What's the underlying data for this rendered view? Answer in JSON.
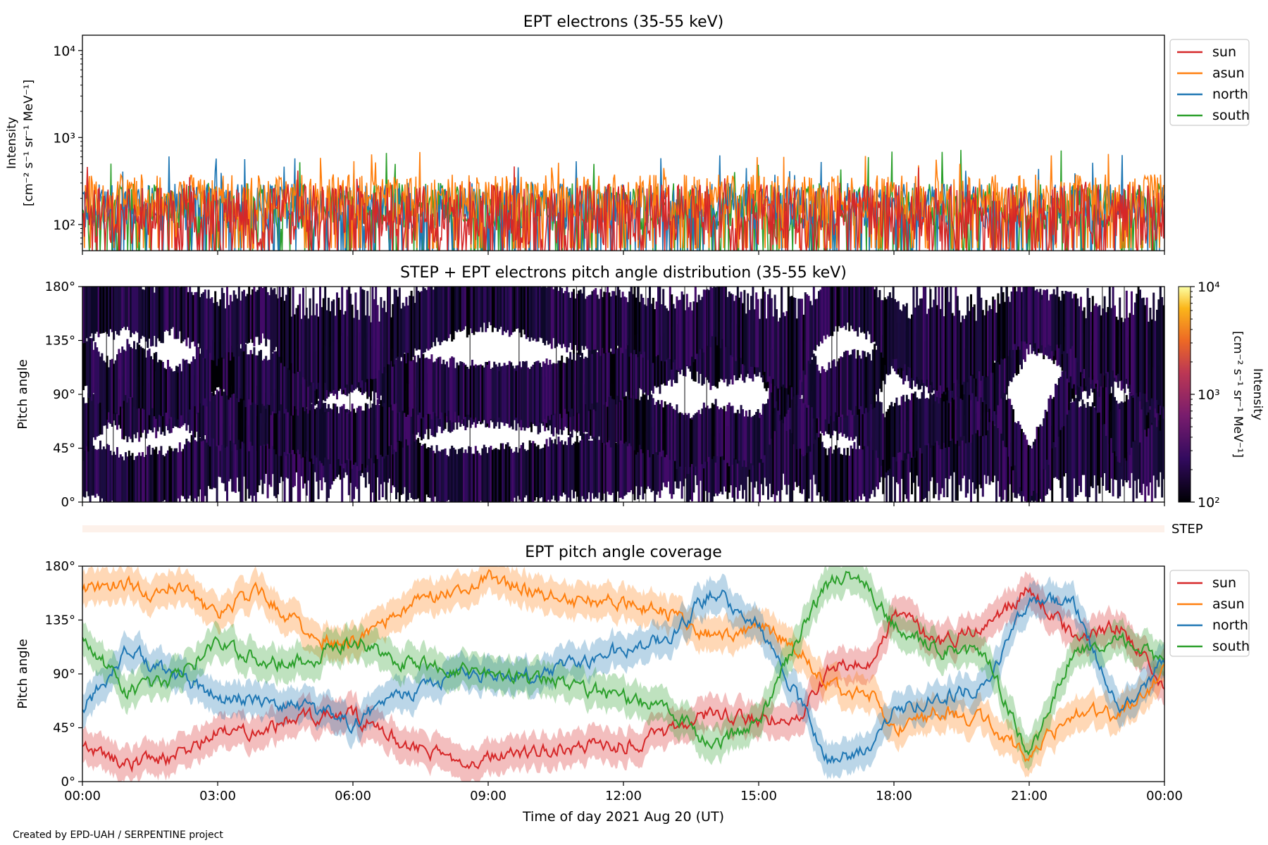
{
  "footer": {
    "credit": "Created by EPD-UAH / SERPENTINE project"
  },
  "colors": {
    "sun": "#d62728",
    "asun": "#ff7f0e",
    "north": "#1f77b4",
    "south": "#2ca02c",
    "step_band": "#fdf1ea"
  },
  "chart_data": [
    {
      "type": "line",
      "title": "EPT electrons (35-55 keV)",
      "ylabel_line1": "Intensity",
      "ylabel_line2": "[cm⁻² s⁻¹ sr⁻¹ MeV⁻¹]",
      "yscale": "log",
      "ylim": [
        50,
        15000
      ],
      "yticks": [
        {
          "value": 100,
          "label": "10²"
        },
        {
          "value": 1000,
          "label": "10³"
        },
        {
          "value": 10000,
          "label": "10⁴"
        }
      ],
      "x_range_hours": [
        0,
        24
      ],
      "legend": {
        "placement": "outside right",
        "entries": [
          "sun",
          "asun",
          "north",
          "south"
        ]
      },
      "series": [
        {
          "name": "sun",
          "color_key": "sun",
          "typical": 130,
          "low": 55,
          "high": 480
        },
        {
          "name": "asun",
          "color_key": "asun",
          "typical": 200,
          "low": 60,
          "high": 690
        },
        {
          "name": "north",
          "color_key": "north",
          "typical": 160,
          "low": 55,
          "high": 640
        },
        {
          "name": "south",
          "color_key": "south",
          "typical": 160,
          "low": 55,
          "high": 720
        }
      ]
    },
    {
      "type": "heatmap",
      "title": "STEP + EPT electrons pitch angle distribution (35-55 keV)",
      "ylabel": "Pitch angle",
      "ylim": [
        0,
        180
      ],
      "yticks": [
        "0°",
        "45°",
        "90°",
        "135°",
        "180°"
      ],
      "colorbar": {
        "label_line1": "Intensity",
        "label_line2": "[cm⁻² s⁻¹ sr⁻¹ MeV⁻¹]",
        "scale": "log",
        "range": [
          100,
          10000
        ],
        "ticks": [
          {
            "value": 100,
            "label": "10²"
          },
          {
            "value": 1000,
            "label": "10³"
          },
          {
            "value": 10000,
            "label": "10⁴"
          }
        ],
        "colormap": "inferno"
      }
    },
    {
      "type": "heatmap",
      "label": "STEP",
      "note": "empty STEP strip"
    },
    {
      "type": "line",
      "title": "EPT pitch angle coverage",
      "ylabel": "Pitch angle",
      "xlabel": "Time of day 2021 Aug 20 (UT)",
      "ylim": [
        0,
        180
      ],
      "yticks": [
        "0°",
        "45°",
        "90°",
        "135°",
        "180°"
      ],
      "xticks": [
        "00:00",
        "03:00",
        "06:00",
        "09:00",
        "12:00",
        "15:00",
        "18:00",
        "21:00",
        "00:00"
      ],
      "legend": {
        "placement": "outside right",
        "entries": [
          "sun",
          "asun",
          "north",
          "south"
        ]
      },
      "series": [
        {
          "name": "sun",
          "color_key": "sun",
          "x": [
            0,
            1,
            1.5,
            2,
            3,
            4,
            5,
            6,
            7,
            8,
            9,
            10,
            11,
            12,
            13,
            14,
            15,
            16,
            16.5,
            17,
            17.5,
            18,
            19,
            20,
            21,
            22,
            23,
            24
          ],
          "y": [
            30,
            15,
            20,
            20,
            40,
            45,
            55,
            55,
            35,
            20,
            20,
            25,
            30,
            30,
            40,
            60,
            50,
            60,
            90,
            100,
            100,
            140,
            115,
            130,
            160,
            120,
            130,
            80
          ]
        },
        {
          "name": "asun",
          "color_key": "asun",
          "x": [
            0,
            1,
            1.5,
            2,
            3,
            4,
            5,
            6,
            7,
            8,
            9,
            10,
            11,
            12,
            13,
            14,
            15,
            16,
            16.5,
            17,
            17.5,
            18,
            19,
            20,
            21,
            22,
            23,
            24
          ],
          "y": [
            160,
            165,
            155,
            165,
            140,
            160,
            120,
            115,
            140,
            160,
            170,
            160,
            150,
            150,
            140,
            120,
            130,
            110,
            80,
            75,
            70,
            40,
            60,
            50,
            20,
            60,
            55,
            90
          ]
        },
        {
          "name": "north",
          "color_key": "north",
          "x": [
            0,
            1,
            1.5,
            2,
            3,
            4,
            5,
            6,
            7,
            8,
            9,
            10,
            11,
            12,
            13,
            14,
            15,
            16,
            16.5,
            17,
            17.5,
            18,
            19,
            20,
            21,
            22,
            23,
            24
          ],
          "y": [
            60,
            110,
            100,
            90,
            70,
            70,
            60,
            50,
            70,
            85,
            90,
            90,
            100,
            110,
            120,
            160,
            130,
            60,
            20,
            20,
            30,
            60,
            70,
            80,
            150,
            150,
            55,
            100
          ]
        },
        {
          "name": "south",
          "color_key": "south",
          "x": [
            0,
            1,
            1.5,
            2,
            3,
            4,
            5,
            6,
            7,
            8,
            9,
            10,
            11,
            12,
            13,
            14,
            15,
            16,
            16.5,
            17,
            17.5,
            18,
            19,
            20,
            21,
            22,
            23,
            24
          ],
          "y": [
            120,
            75,
            80,
            85,
            115,
            100,
            100,
            120,
            100,
            95,
            90,
            85,
            80,
            70,
            60,
            30,
            50,
            130,
            165,
            170,
            160,
            130,
            110,
            110,
            20,
            110,
            120,
            100
          ]
        }
      ]
    }
  ]
}
